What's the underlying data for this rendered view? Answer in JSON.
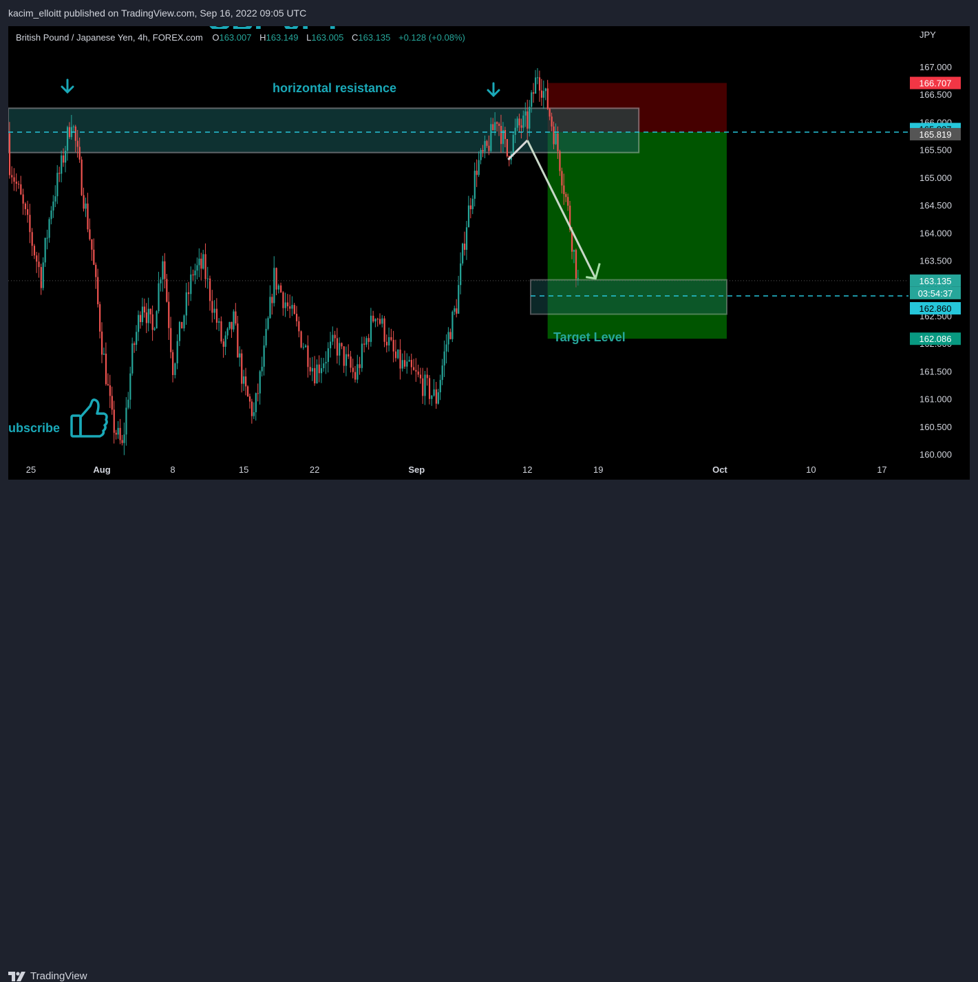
{
  "header": {
    "published": "kacim_elloitt published on TradingView.com, Sep 16, 2022 09:05 UTC"
  },
  "symbol": {
    "big_title": "GBP JPY",
    "name": "British Pound / Japanese Yen, 4h, FOREX.com",
    "o_label": "O",
    "o_value": "163.007",
    "h_label": "H",
    "h_value": "163.149",
    "l_label": "L",
    "l_value": "163.005",
    "c_label": "C",
    "c_value": "163.135",
    "change": "+0.128 (+0.08%)"
  },
  "annotations": {
    "resistance": "horizontal resistance",
    "target": "Target Level",
    "subscribe": "ubscribe"
  },
  "footer": {
    "brand": "TradingView"
  },
  "colors": {
    "up": "#26a69a",
    "down": "#ef5350",
    "bg": "#000000",
    "zone": "#0f3a3a",
    "stop_zone": "#4a0000",
    "profit_zone": "#005a00",
    "dashed": "#26c6da"
  },
  "chart_data": {
    "type": "candlestick",
    "currency": "JPY",
    "ylim": [
      160.0,
      167.4
    ],
    "y_ticks": [
      "160.000",
      "160.500",
      "161.000",
      "161.500",
      "162.000",
      "162.500",
      "163.000",
      "163.500",
      "164.000",
      "164.500",
      "165.000",
      "165.500",
      "166.000",
      "166.500",
      "167.000"
    ],
    "x_ticks": [
      "25",
      "Aug",
      "8",
      "15",
      "22",
      "Sep",
      "12",
      "19",
      "Oct",
      "10",
      "17"
    ],
    "price_labels": [
      {
        "value": "166.707",
        "kind": "stop"
      },
      {
        "value": "165.837",
        "kind": "resistance"
      },
      {
        "value": "165.819",
        "kind": "entry"
      },
      {
        "value": "163.135",
        "kind": "last"
      },
      {
        "value": "03:54:37",
        "kind": "countdown"
      },
      {
        "value": "162.860",
        "kind": "target"
      },
      {
        "value": "162.086",
        "kind": "take_profit"
      }
    ],
    "levels": {
      "resistance_zone": [
        165.45,
        166.25
      ],
      "resistance_line": 165.837,
      "stop": 166.707,
      "entry": 165.819,
      "take_profit": 162.086,
      "target_zone": [
        162.53,
        163.15
      ],
      "target_line": 162.86,
      "last_price": 163.135
    },
    "price_path": [
      [
        "2022-07-22",
        165.8
      ],
      [
        "2022-07-24",
        164.6
      ],
      [
        "2022-07-26",
        163.2
      ],
      [
        "2022-07-27",
        164.5
      ],
      [
        "2022-07-28",
        165.2
      ],
      [
        "2022-07-29",
        166.1
      ],
      [
        "2022-07-30",
        164.9
      ],
      [
        "2022-07-31",
        163.7
      ],
      [
        "2022-08-01",
        162.0
      ],
      [
        "2022-08-02",
        160.6
      ],
      [
        "2022-08-03",
        160.1
      ],
      [
        "2022-08-04",
        161.8
      ],
      [
        "2022-08-05",
        162.8
      ],
      [
        "2022-08-06",
        162.2
      ],
      [
        "2022-08-07",
        163.6
      ],
      [
        "2022-08-08",
        161.6
      ],
      [
        "2022-08-10",
        163.3
      ],
      [
        "2022-08-11",
        163.4
      ],
      [
        "2022-08-13",
        161.9
      ],
      [
        "2022-08-14",
        162.4
      ],
      [
        "2022-08-15",
        161.2
      ],
      [
        "2022-08-16",
        160.7
      ],
      [
        "2022-08-17",
        161.8
      ],
      [
        "2022-08-18",
        163.2
      ],
      [
        "2022-08-20",
        162.4
      ],
      [
        "2022-08-22",
        161.5
      ],
      [
        "2022-08-24",
        162.0
      ],
      [
        "2022-08-26",
        161.4
      ],
      [
        "2022-08-28",
        162.6
      ],
      [
        "2022-08-30",
        161.7
      ],
      [
        "2022-09-01",
        161.4
      ],
      [
        "2022-09-03",
        161.0
      ],
      [
        "2022-09-04",
        162.0
      ],
      [
        "2022-09-05",
        162.7
      ],
      [
        "2022-09-06",
        164.2
      ],
      [
        "2022-09-07",
        165.2
      ],
      [
        "2022-09-08",
        165.5
      ],
      [
        "2022-09-09",
        166.1
      ],
      [
        "2022-09-10",
        165.4
      ],
      [
        "2022-09-11",
        165.9
      ],
      [
        "2022-09-12",
        166.0
      ],
      [
        "2022-09-13",
        166.9
      ],
      [
        "2022-09-14",
        166.3
      ],
      [
        "2022-09-15",
        165.5
      ],
      [
        "2022-09-16",
        164.4
      ],
      [
        "2022-09-17",
        163.1
      ]
    ]
  }
}
